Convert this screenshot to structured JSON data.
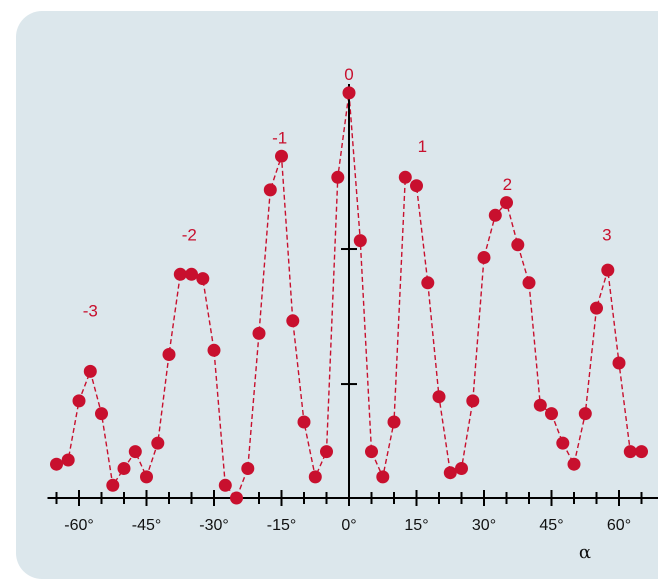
{
  "colors": {
    "background": "#dce7ec",
    "series": "#c8102e",
    "axis": "#000000"
  },
  "chart_data": {
    "type": "scatter",
    "title": "",
    "xlabel": "α",
    "ylabel": "",
    "xlim": [
      -67,
      67
    ],
    "ylim": [
      0,
      10
    ],
    "grid": false,
    "connect_points": "dashed-line",
    "x_ticks": [
      {
        "value": -60,
        "label": "-60°"
      },
      {
        "value": -45,
        "label": "-45°"
      },
      {
        "value": -30,
        "label": "-30°"
      },
      {
        "value": -15,
        "label": "-15°"
      },
      {
        "value": 0,
        "label": "0°"
      },
      {
        "value": 15,
        "label": "15°"
      },
      {
        "value": 30,
        "label": "30°"
      },
      {
        "value": 45,
        "label": "45°"
      },
      {
        "value": 60,
        "label": "60°"
      }
    ],
    "y_ticks": [
      2.7,
      5.9
    ],
    "order_labels": [
      {
        "text": "-3",
        "x": -57.5,
        "y": 4.3
      },
      {
        "text": "-2",
        "x": -35.5,
        "y": 6.1
      },
      {
        "text": "-1",
        "x": -15.4,
        "y": 8.4
      },
      {
        "text": "0",
        "x": 0,
        "y": 9.9
      },
      {
        "text": "1",
        "x": 16.3,
        "y": 8.2
      },
      {
        "text": "2",
        "x": 35.2,
        "y": 7.3
      },
      {
        "text": "3",
        "x": 57.3,
        "y": 6.1
      }
    ],
    "x": [
      -65,
      -62.4,
      -60,
      -57.5,
      -55,
      -52.5,
      -50,
      -47.5,
      -45,
      -42.5,
      -40,
      -37.5,
      -35,
      -32.5,
      -30,
      -27.5,
      -25,
      -22.5,
      -20,
      -17.5,
      -15,
      -12.5,
      -10,
      -7.5,
      -5,
      -2.5,
      0,
      2.5,
      5,
      7.5,
      10,
      12.5,
      15,
      17.5,
      20,
      22.5,
      25,
      27.5,
      30,
      32.5,
      35,
      37.5,
      40,
      42.5,
      45,
      47.5,
      50,
      52.5,
      55,
      57.5,
      60,
      62.5,
      65
    ],
    "y": [
      0.8,
      0.9,
      2.3,
      3.0,
      2.0,
      0.3,
      0.7,
      1.1,
      0.5,
      1.3,
      3.4,
      5.3,
      5.3,
      5.2,
      3.5,
      0.3,
      0.0,
      0.7,
      3.9,
      7.3,
      8.1,
      4.2,
      1.8,
      0.5,
      1.1,
      7.6,
      9.6,
      6.1,
      1.1,
      0.5,
      1.8,
      7.6,
      7.4,
      5.1,
      2.4,
      0.6,
      0.7,
      2.3,
      5.7,
      6.7,
      7.0,
      6.0,
      5.1,
      2.2,
      2.0,
      1.3,
      0.8,
      2.0,
      4.5,
      5.4,
      3.2,
      1.1,
      1.1
    ]
  }
}
